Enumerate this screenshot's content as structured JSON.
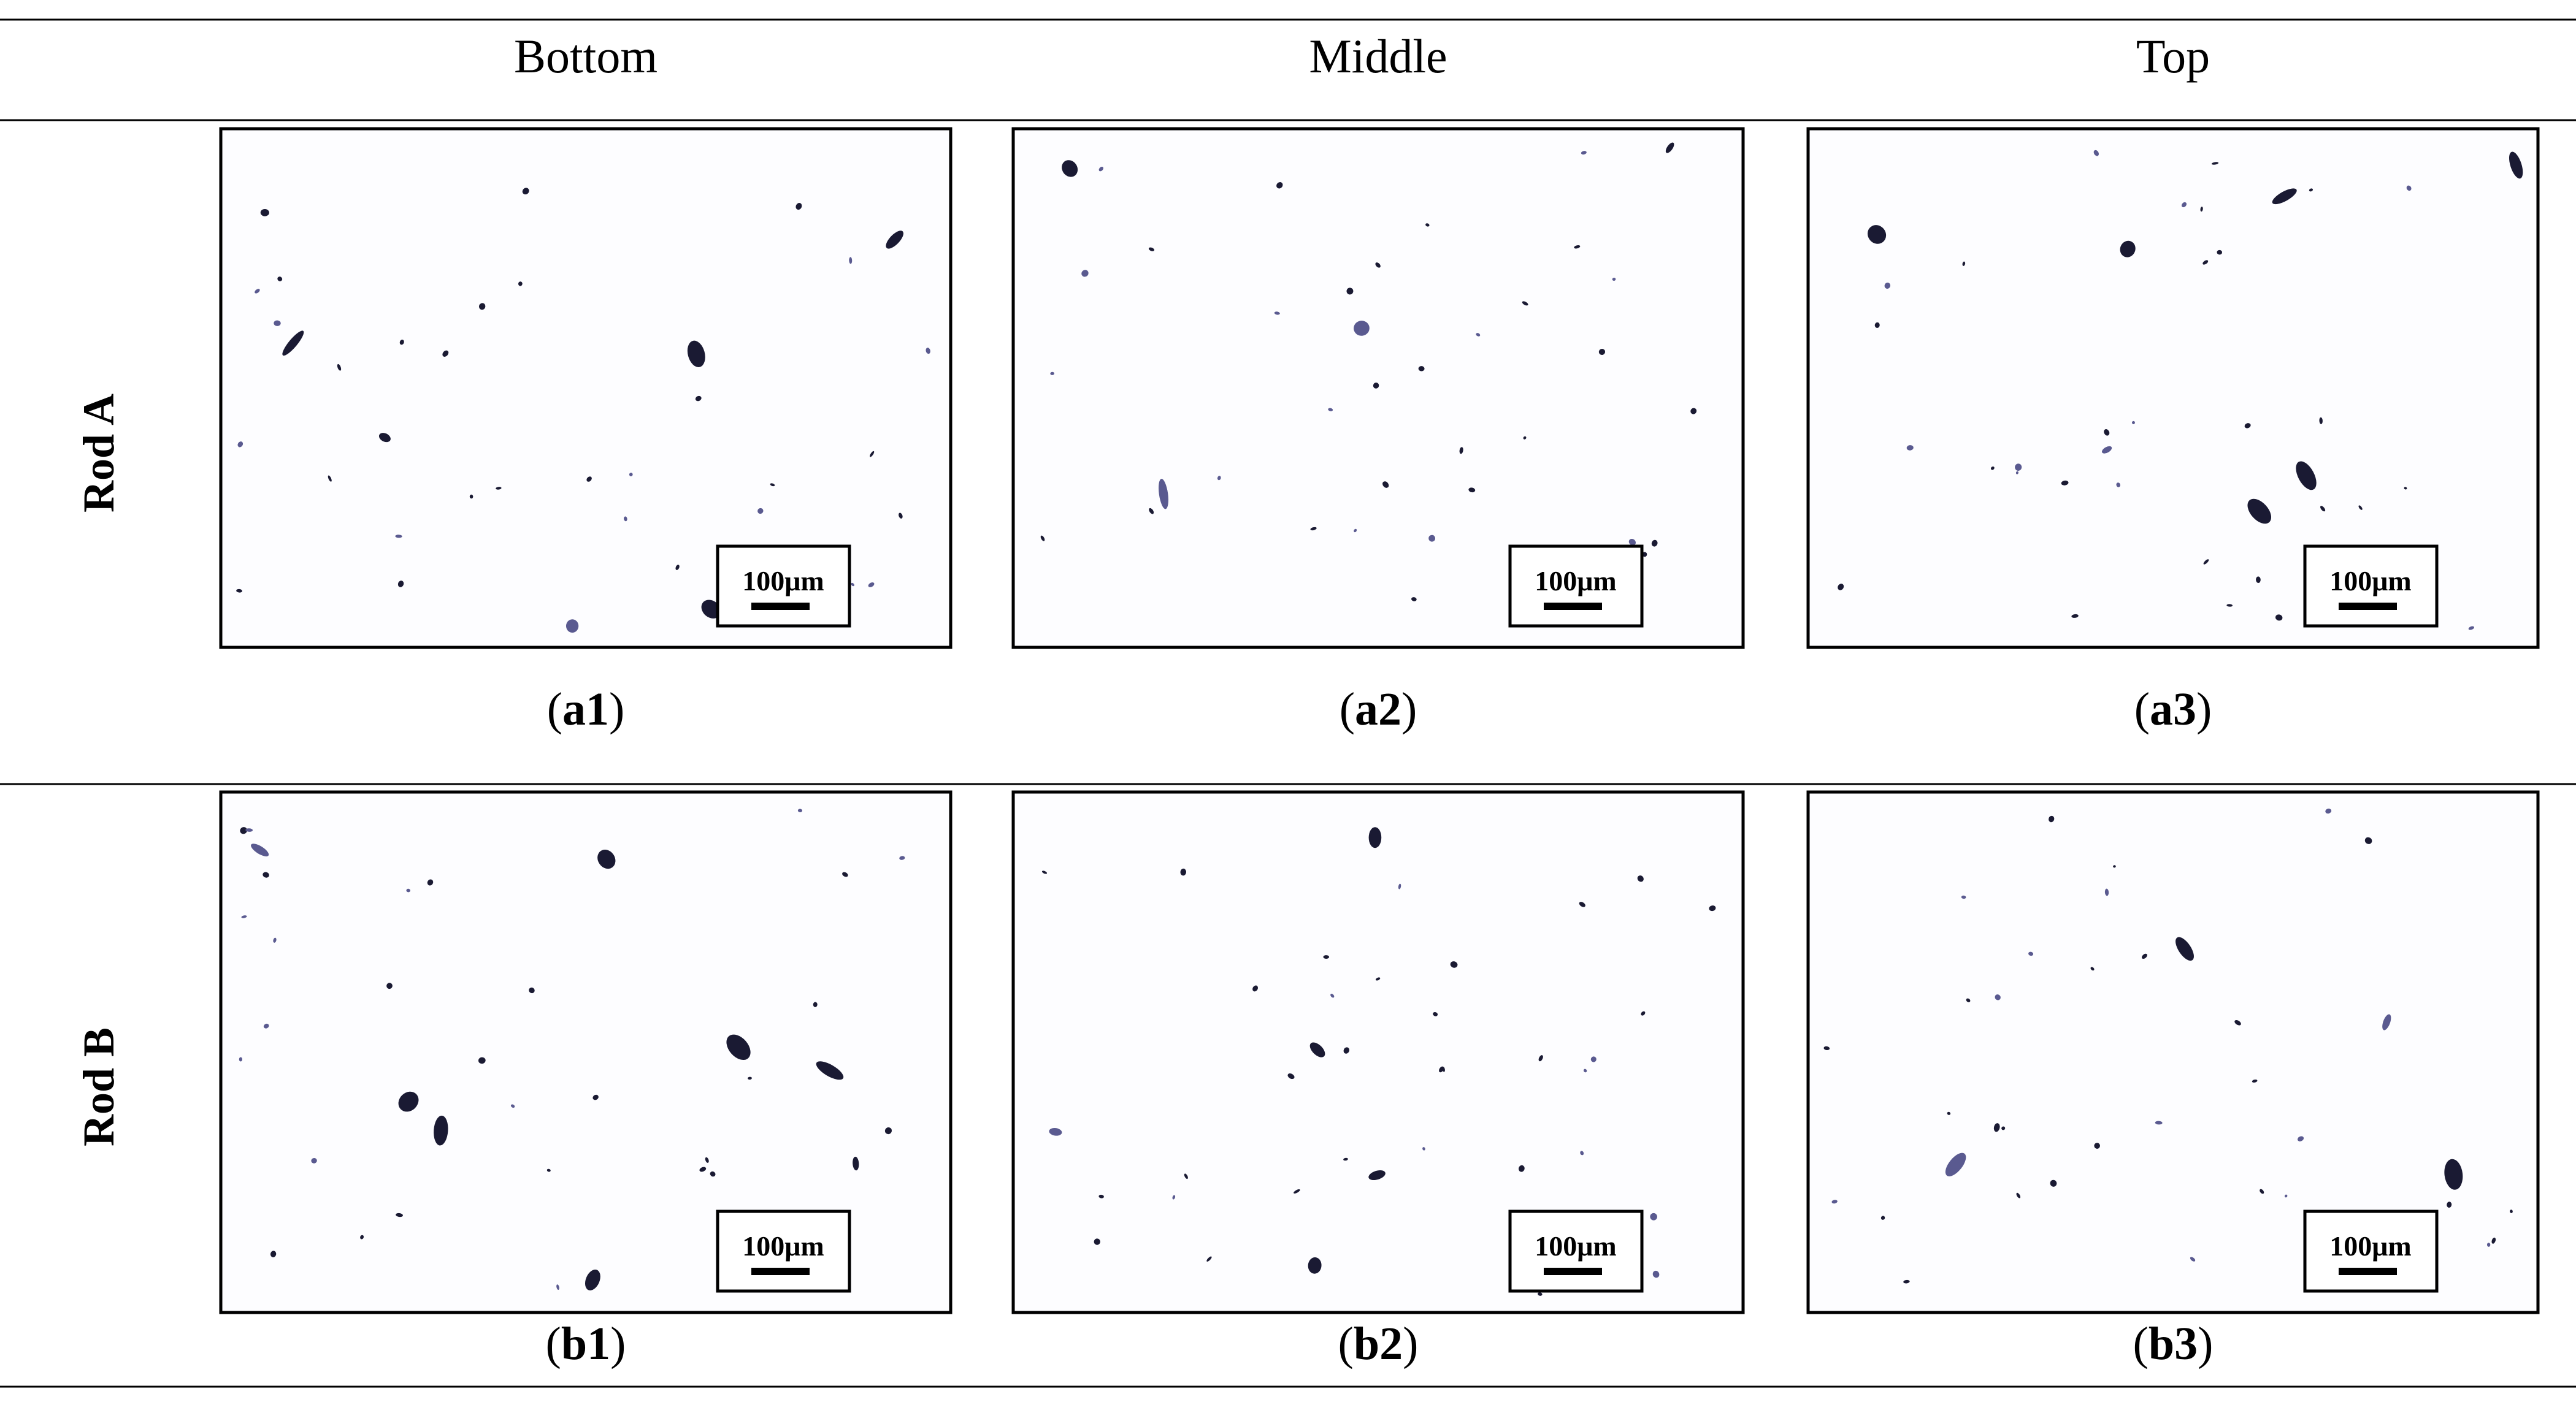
{
  "columns": [
    "Bottom",
    "Middle",
    "Top"
  ],
  "rows": [
    {
      "label": "Rod A",
      "panels": [
        {
          "caption": {
            "open": "(",
            "label": "a1",
            "close": ")"
          },
          "scale_bar": "100μm"
        },
        {
          "caption": {
            "open": "(",
            "label": "a2",
            "close": ")"
          },
          "scale_bar": "100μm"
        },
        {
          "caption": {
            "open": "(",
            "label": "a3",
            "close": ")"
          },
          "scale_bar": "100μm"
        }
      ]
    },
    {
      "label": "Rod B",
      "panels": [
        {
          "caption": {
            "open": "(",
            "label": "b1",
            "close": ")"
          },
          "scale_bar": "100μm"
        },
        {
          "caption": {
            "open": "(",
            "label": "b2",
            "close": ")"
          },
          "scale_bar": "100μm"
        },
        {
          "caption": {
            "open": "(",
            "label": "b3",
            "close": ")"
          },
          "scale_bar": "100μm"
        }
      ]
    }
  ]
}
